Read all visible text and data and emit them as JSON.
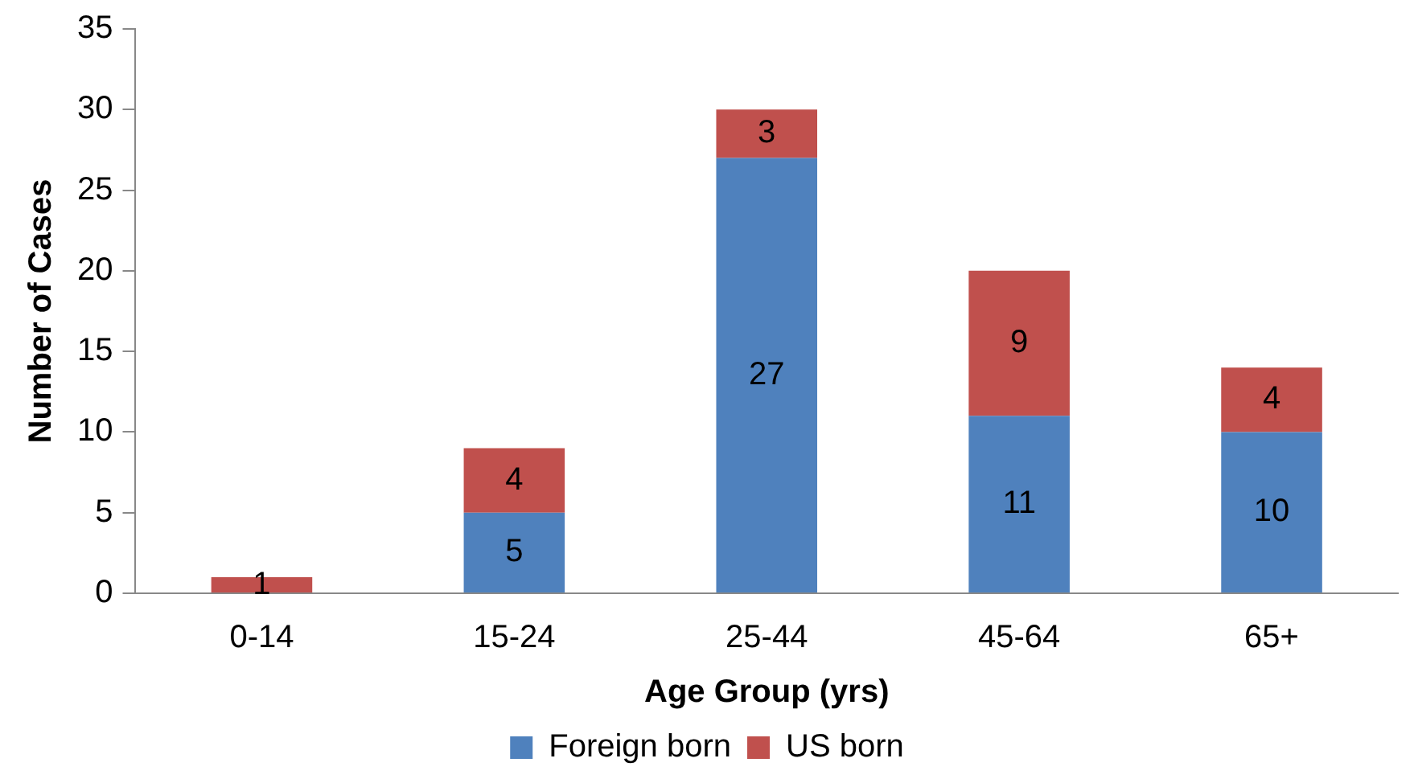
{
  "chart_data": {
    "type": "bar",
    "stacked": true,
    "xlabel": "Age Group (yrs)",
    "ylabel": "Number of Cases",
    "categories": [
      "0-14",
      "15-24",
      "25-44",
      "45-64",
      "65+"
    ],
    "series": [
      {
        "name": "Foreign born",
        "color": "#4f81bd",
        "values": [
          0,
          5,
          27,
          11,
          10
        ],
        "value_labels": [
          null,
          "5",
          "27",
          "11",
          "10"
        ]
      },
      {
        "name": "US born",
        "color": "#c0504d",
        "values": [
          1,
          4,
          3,
          9,
          4
        ],
        "value_labels": [
          "1",
          "4",
          "3",
          "9",
          "4"
        ]
      }
    ],
    "ylim": [
      0,
      35
    ],
    "yticks": [
      0,
      5,
      10,
      15,
      20,
      25,
      30,
      35
    ],
    "legend": "bottom"
  }
}
